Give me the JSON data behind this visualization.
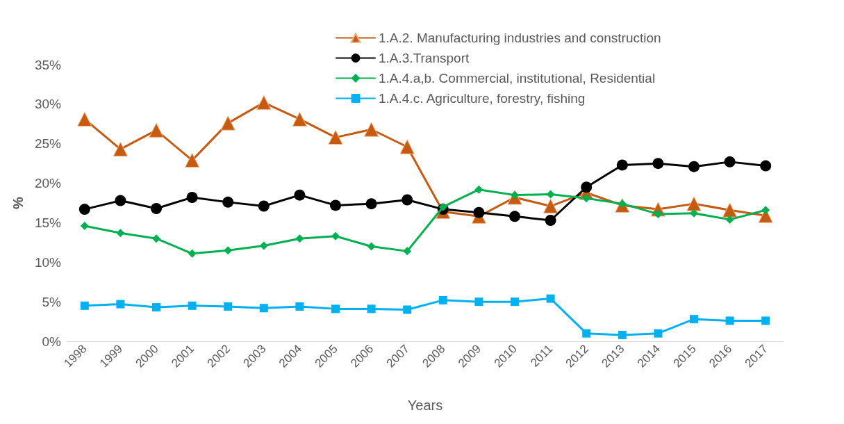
{
  "chart_data": {
    "type": "line",
    "xlabel": "Years",
    "ylabel": "%",
    "categories": [
      "1998",
      "1999",
      "2000",
      "2001",
      "2002",
      "2003",
      "2004",
      "2005",
      "2006",
      "2007",
      "2008",
      "2009",
      "2010",
      "2011",
      "2012",
      "2013",
      "2014",
      "2015",
      "2016",
      "2017"
    ],
    "series": [
      {
        "name": "1.A.2. Manufacturing industries and construction",
        "color": "#c55a11",
        "marker": "triangle",
        "values": [
          28.1,
          24.3,
          26.7,
          22.9,
          27.6,
          30.2,
          28.1,
          25.8,
          26.8,
          24.6,
          16.4,
          15.8,
          18.2,
          17.1,
          18.8,
          17.2,
          16.7,
          17.4,
          16.6,
          15.9
        ]
      },
      {
        "name": "1.A.3.Transport",
        "color": "#000000",
        "marker": "circle",
        "values": [
          16.7,
          17.8,
          16.8,
          18.2,
          17.6,
          17.1,
          18.5,
          17.2,
          17.4,
          17.9,
          16.7,
          16.3,
          15.8,
          15.3,
          19.5,
          22.3,
          22.5,
          22.1,
          22.7,
          22.2
        ]
      },
      {
        "name": "1.A.4.a,b. Commercial, institutional, Residential",
        "color": "#00b050",
        "marker": "diamond",
        "values": [
          14.6,
          13.7,
          13.0,
          11.1,
          11.5,
          12.1,
          13.0,
          13.3,
          12.0,
          11.4,
          17.0,
          19.2,
          18.5,
          18.6,
          18.1,
          17.4,
          16.1,
          16.2,
          15.4,
          16.6
        ]
      },
      {
        "name": "1.A.4.c. Agriculture, forestry, fishing",
        "color": "#00b0f0",
        "marker": "square",
        "values": [
          4.5,
          4.7,
          4.3,
          4.5,
          4.4,
          4.2,
          4.4,
          4.1,
          4.1,
          4.0,
          5.2,
          5.0,
          5.0,
          5.4,
          1.0,
          0.8,
          1.0,
          2.8,
          2.6,
          2.6
        ]
      }
    ],
    "ylim": [
      0,
      35
    ],
    "yticks": [
      {
        "value": 0,
        "label": "0%"
      },
      {
        "value": 5,
        "label": "5%"
      },
      {
        "value": 10,
        "label": "10%"
      },
      {
        "value": 15,
        "label": "15%"
      },
      {
        "value": 20,
        "label": "20%"
      },
      {
        "value": 25,
        "label": "25%"
      },
      {
        "value": 30,
        "label": "30%"
      },
      {
        "value": 35,
        "label": "35%"
      }
    ],
    "grid": false,
    "legend": "top right",
    "line_style": "solid"
  }
}
